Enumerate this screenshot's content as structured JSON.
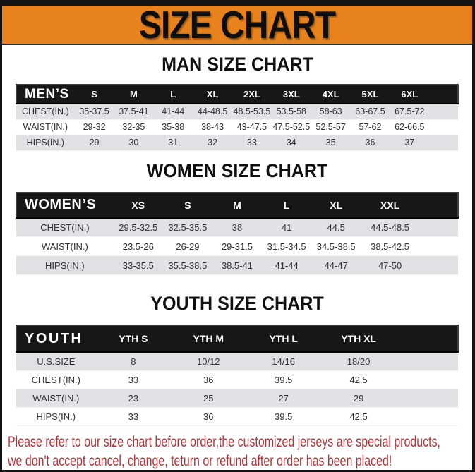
{
  "banner": {
    "title": "SIZE CHART"
  },
  "sections": [
    {
      "title": "MAN SIZE CHART",
      "table": {
        "header": [
          "MEN’S",
          "S",
          "M",
          "L",
          "XL",
          "2XL",
          "3XL",
          "4XL",
          "5XL",
          "6XL"
        ],
        "rows": [
          [
            "CHEST(IN.)",
            "35-37.5",
            "37.5-41",
            "41-44",
            "44-48.5",
            "48.5-53.5",
            "53.5-58",
            "58-63",
            "63-67.5",
            "67.5-72"
          ],
          [
            "WAIST(IN.)",
            "29-32",
            "32-35",
            "35-38",
            "38-43",
            "43-47.5",
            "47.5-52.5",
            "52.5-57",
            "57-62",
            "62-66.5"
          ],
          [
            "HIPS(IN.)",
            "29",
            "30",
            "31",
            "32",
            "33",
            "34",
            "35",
            "36",
            "37"
          ]
        ]
      }
    },
    {
      "title": "WOMEN SIZE CHART",
      "table": {
        "header": [
          "WOMEN’S",
          "XS",
          "S",
          "M",
          "L",
          "XL",
          "XXL"
        ],
        "rows": [
          [
            "CHEST(IN.)",
            "29.5-32.5",
            "32.5-35.5",
            "38",
            "41",
            "44.5",
            "44.5-48.5"
          ],
          [
            "WAIST(IN.)",
            "23.5-26",
            "26-29",
            "29-31.5",
            "31.5-34.5",
            "34.5-38.5",
            "38.5-42.5"
          ],
          [
            "HIPS(IN.)",
            "33-35.5",
            "35.5-38.5",
            "38.5-41",
            "41-44",
            "44-47",
            "47-50"
          ]
        ]
      }
    },
    {
      "title": "YOUTH SIZE CHART",
      "table": {
        "header": [
          "YOUTH",
          "YTH S",
          "YTH M",
          "YTH L",
          "YTH XL"
        ],
        "rows": [
          [
            "U.S.SIZE",
            "8",
            "10/12",
            "14/16",
            "18/20"
          ],
          [
            "CHEST(IN.)",
            "33",
            "36",
            "39.5",
            "42.5"
          ],
          [
            "WAIST(IN.)",
            "23",
            "25",
            "27",
            "29"
          ],
          [
            "HIPS(IN.)",
            "33",
            "36",
            "39.5",
            "42.5"
          ]
        ]
      }
    }
  ],
  "footer": {
    "line1": "Please refer to our size chart before order,the customized jerseys are special products,",
    "line2": "we don't accept cancel, change, teturn or refund after order has been placed!"
  },
  "colors": {
    "banner_orange": "#e8821d",
    "table_header_black": "#171717",
    "row_gray": "#e2e2e4",
    "note_red": "#b13438"
  }
}
